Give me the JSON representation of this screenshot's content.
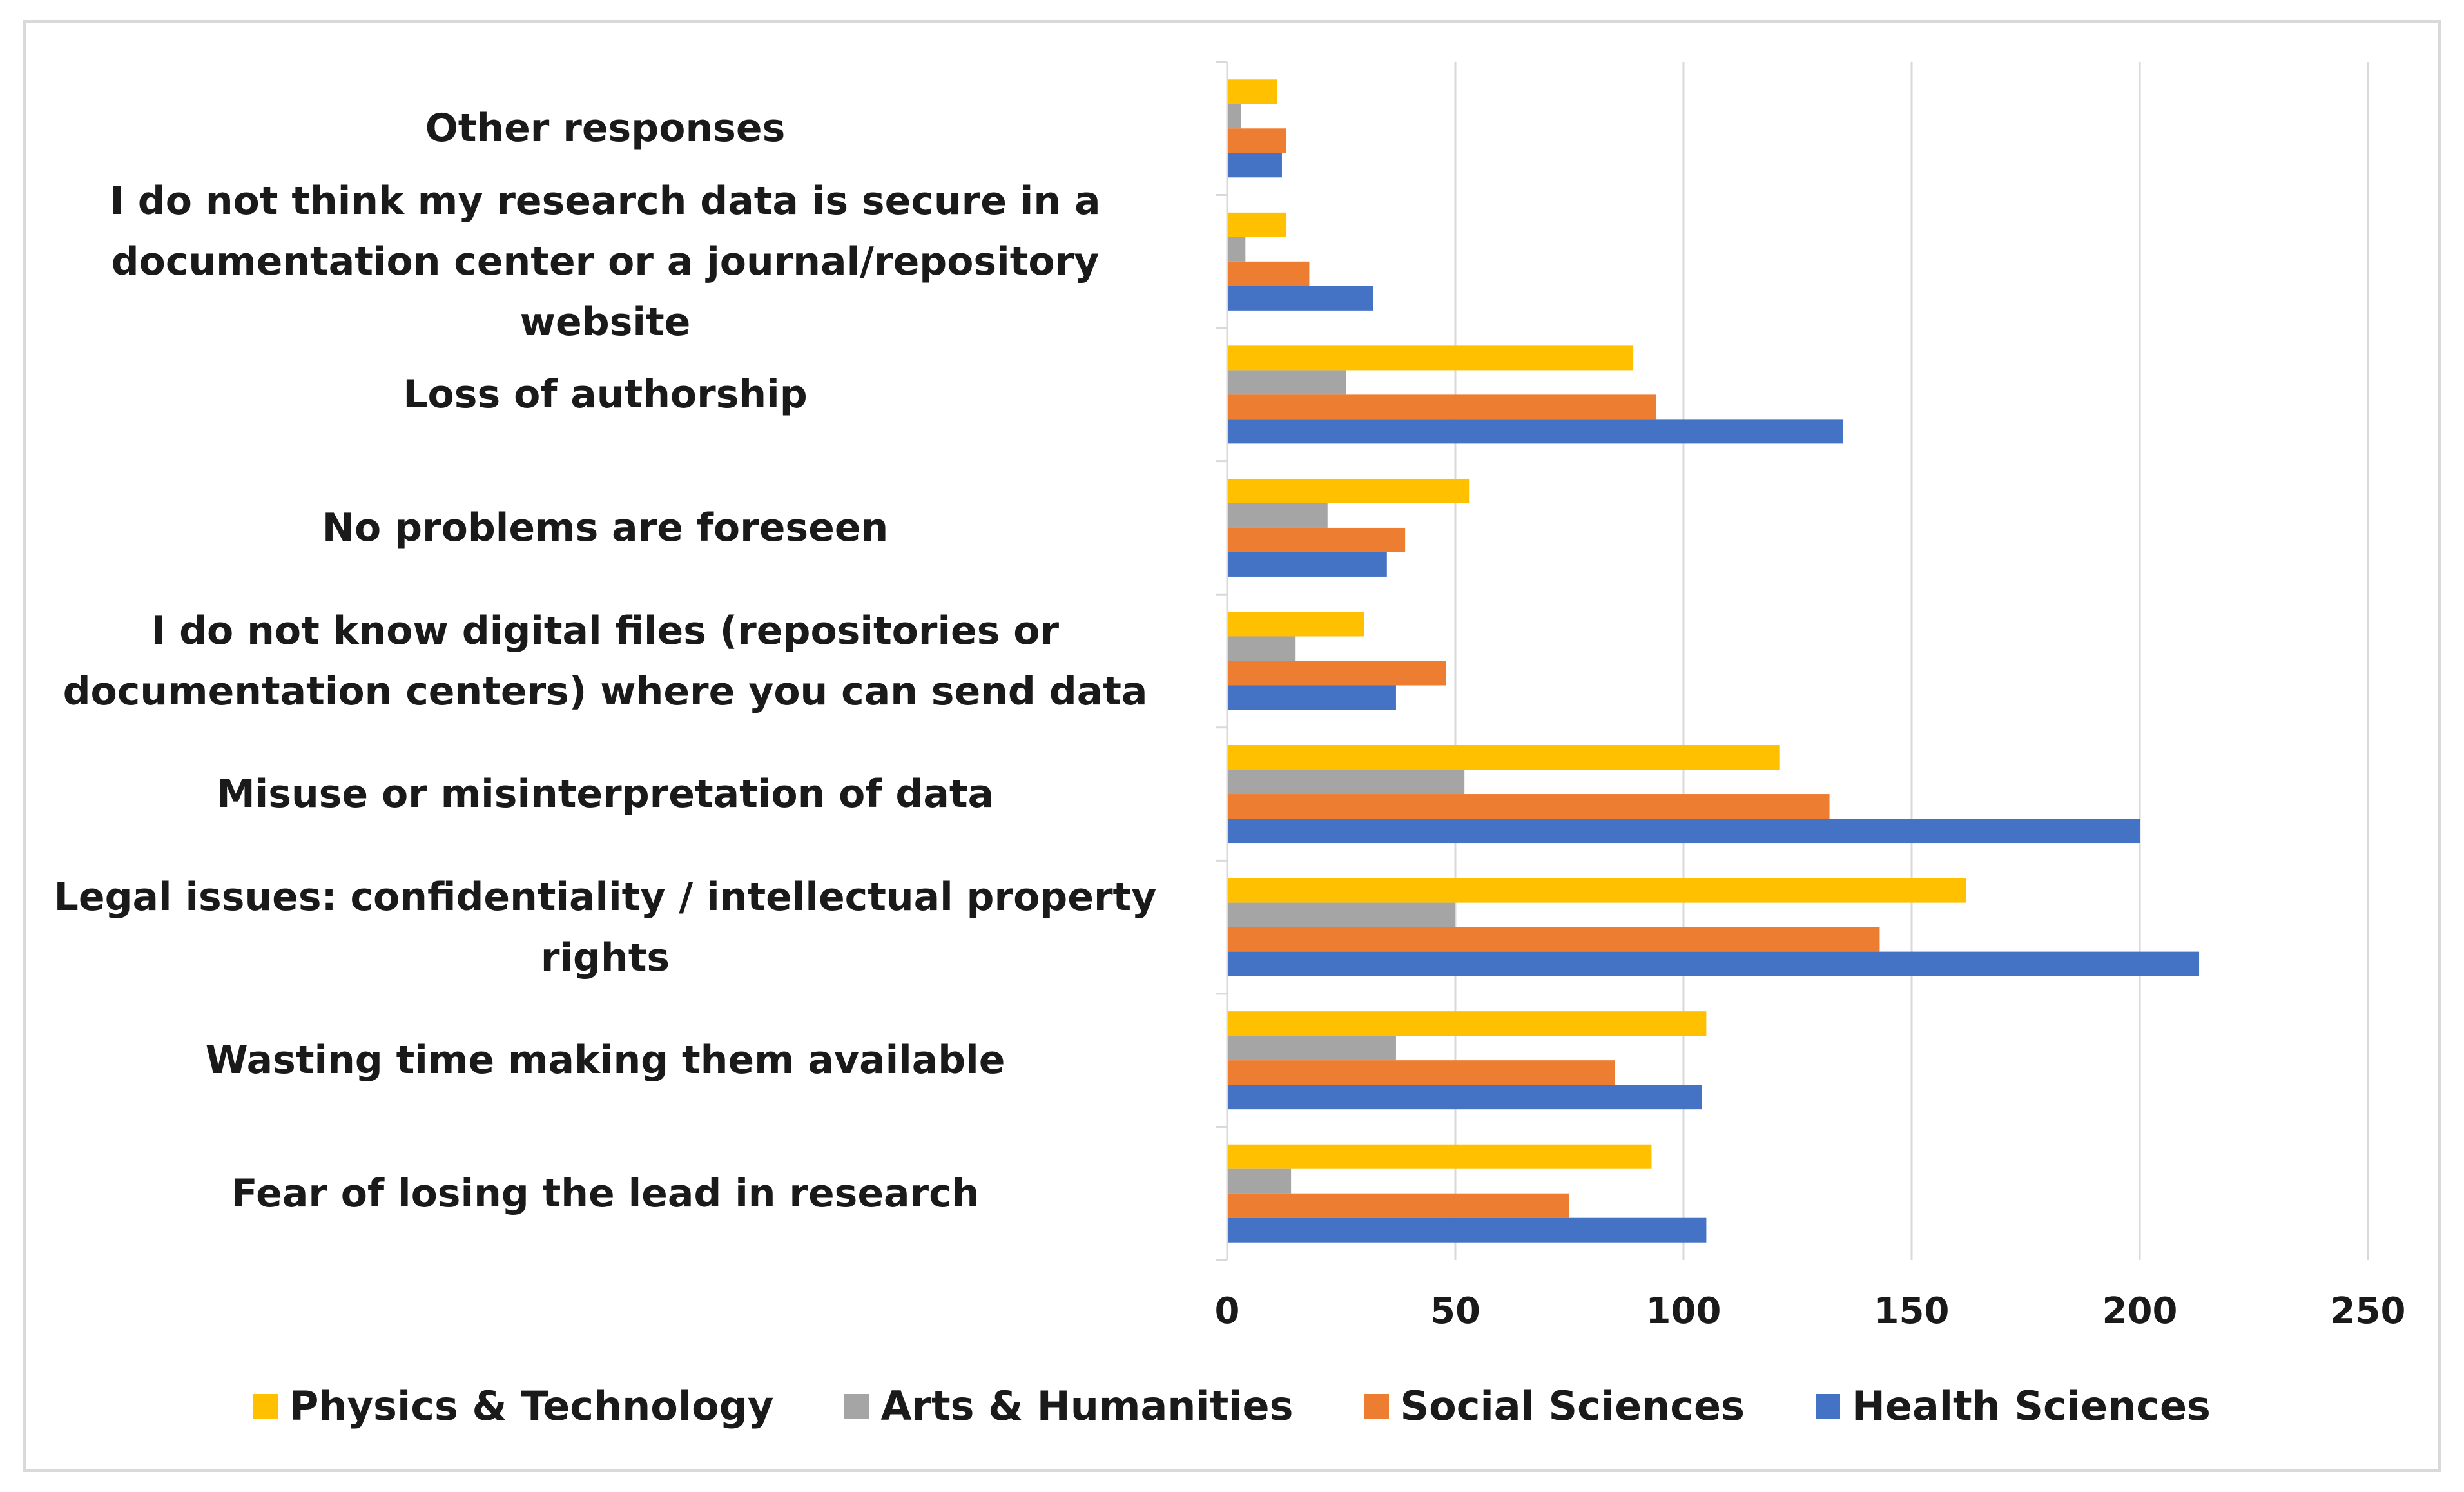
{
  "chart_data": {
    "type": "bar",
    "orientation": "horizontal",
    "title": "",
    "xlabel": "",
    "ylabel": "",
    "xlim": [
      0,
      250
    ],
    "x_ticks": [
      "0",
      "50",
      "100",
      "150",
      "200",
      "250"
    ],
    "grid": true,
    "legend_position": "bottom",
    "categories": [
      [
        "Other responses"
      ],
      [
        "I do not think my research data is secure in a",
        "documentation center or  a journal/repository website"
      ],
      [
        "Loss of authorship"
      ],
      [
        "No problems are foreseen"
      ],
      [
        "I do not know digital files (repositories or",
        "documentation centers) where you can send data"
      ],
      [
        "Misuse or misinterpretation of data"
      ],
      [
        "Legal issues: confidentiality / intellectual property",
        "rights"
      ],
      [
        "Wasting time making them available"
      ],
      [
        "Fear of losing the lead in research"
      ]
    ],
    "series": [
      {
        "name": "Physics & Technology",
        "color": "#FFC000",
        "values": [
          11,
          13,
          89,
          53,
          30,
          121,
          162,
          105,
          93
        ]
      },
      {
        "name": "Arts & Humanities",
        "color": "#A5A5A5",
        "values": [
          3,
          4,
          26,
          22,
          15,
          52,
          50,
          37,
          14
        ]
      },
      {
        "name": "Social Sciences",
        "color": "#ED7D31",
        "values": [
          13,
          18,
          94,
          39,
          48,
          132,
          143,
          85,
          75
        ]
      },
      {
        "name": "Health Sciences",
        "color": "#4472C4",
        "values": [
          12,
          32,
          135,
          35,
          37,
          200,
          213,
          104,
          105
        ]
      }
    ]
  }
}
